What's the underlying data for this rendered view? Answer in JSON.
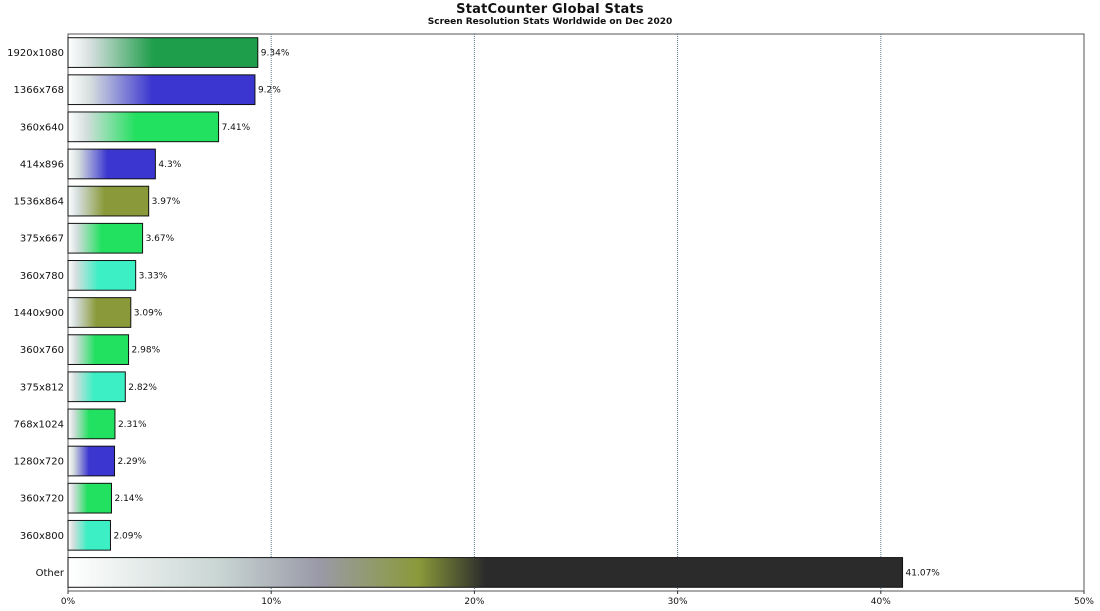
{
  "chart_data": {
    "type": "bar",
    "orientation": "horizontal",
    "title": "StatCounter Global Stats",
    "subtitle": "Screen Resolution Stats Worldwide on Dec 2020",
    "xlabel": "",
    "ylabel": "",
    "xlim": [
      0,
      50
    ],
    "x_ticks": [
      "0%",
      "10%",
      "20%",
      "30%",
      "40%",
      "50%"
    ],
    "x_tick_values": [
      0,
      10,
      20,
      30,
      40,
      50
    ],
    "grid": "vertical",
    "legend": "none",
    "categories": [
      "1920x1080",
      "1366x768",
      "360x640",
      "414x896",
      "1536x864",
      "375x667",
      "360x780",
      "1440x900",
      "360x760",
      "375x812",
      "768x1024",
      "1280x720",
      "360x720",
      "360x800",
      "Other"
    ],
    "values": [
      9.34,
      9.2,
      7.41,
      4.3,
      3.97,
      3.67,
      3.33,
      3.09,
      2.98,
      2.82,
      2.31,
      2.29,
      2.14,
      2.09,
      41.07
    ],
    "value_labels": [
      "9.34%",
      "9.2%",
      "7.41%",
      "4.3%",
      "3.97%",
      "3.67%",
      "3.33%",
      "3.09%",
      "2.98%",
      "2.82%",
      "2.31%",
      "2.29%",
      "2.14%",
      "2.09%",
      "41.07%"
    ],
    "colors": [
      "#1e9e4a",
      "#3b36cf",
      "#22e060",
      "#3b36cf",
      "#8a9a3a",
      "#22e060",
      "#3cefc4",
      "#8a9a3a",
      "#22e060",
      "#3cefc4",
      "#22e060",
      "#3b36cf",
      "#22e060",
      "#3cefc4",
      "#2b2b2b"
    ]
  }
}
